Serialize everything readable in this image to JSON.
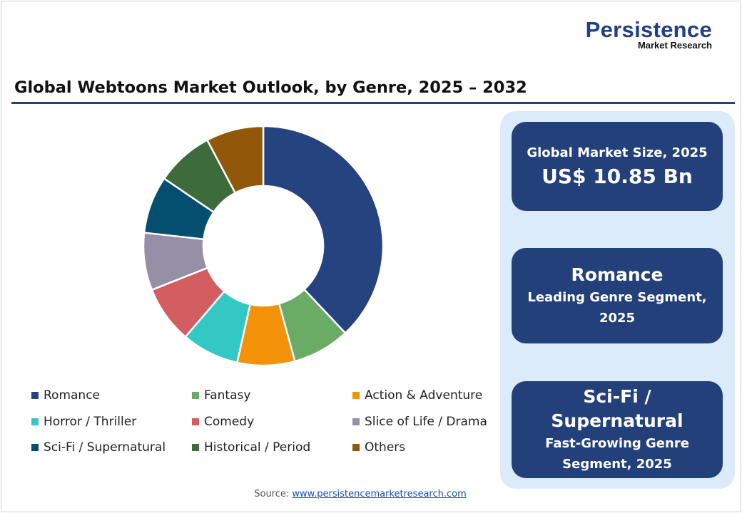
{
  "logo": {
    "main": "Persistence",
    "sub": "Market Research"
  },
  "title": "Global Webtoons Market Outlook, by Genre, 2025 – 2032",
  "cards": [
    {
      "label": "Global Market Size, 2025",
      "value": "US$ 10.85 Bn"
    },
    {
      "value": "Romance",
      "label": "Leading Genre Segment, 2025"
    },
    {
      "value": "Sci-Fi / Supernatural",
      "label": "Fast-Growing Genre Segment, 2025"
    }
  ],
  "source": {
    "label": "Source: ",
    "link": "www.persistencemarketresearch.com"
  },
  "chart_data": {
    "type": "pie",
    "donut": true,
    "legend_position": "bottom",
    "categories": [
      "Romance",
      "Fantasy",
      "Action & Adventure",
      "Horror / Thriller",
      "Comedy",
      "Slice of Life / Drama",
      "Sci-Fi / Supernatural",
      "Historical / Period",
      "Others"
    ],
    "values": [
      38,
      7.75,
      7.75,
      7.75,
      7.75,
      7.75,
      7.75,
      7.75,
      7.75
    ],
    "colors": [
      "#24437f",
      "#6aab65",
      "#f39208",
      "#33c8c4",
      "#d35e62",
      "#9690a6",
      "#044f70",
      "#3d6b3b",
      "#925708"
    ]
  }
}
